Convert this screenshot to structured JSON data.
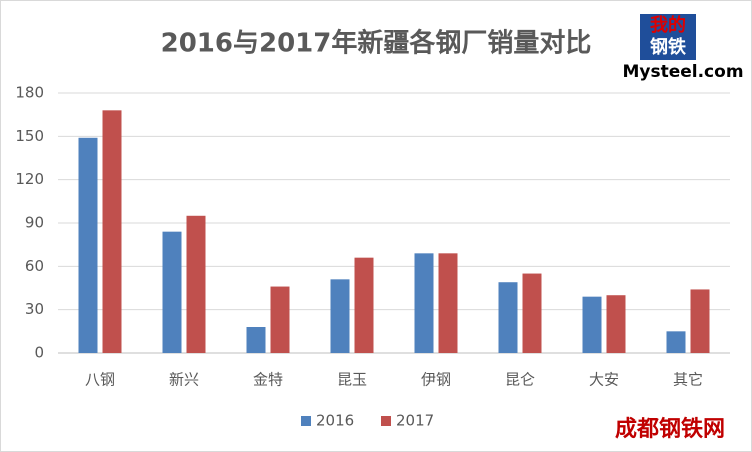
{
  "chart_data": {
    "type": "bar",
    "title": "2016与2017年新疆各钢厂销量对比",
    "categories": [
      "八钢",
      "新兴",
      "金特",
      "昆玉",
      "伊钢",
      "昆仑",
      "大安",
      "其它"
    ],
    "series": [
      {
        "name": "2016",
        "color": "#4f81bd",
        "values": [
          149,
          84,
          18,
          51,
          69,
          49,
          39,
          15
        ]
      },
      {
        "name": "2017",
        "color": "#c0504d",
        "values": [
          168,
          95,
          46,
          66,
          69,
          55,
          40,
          44
        ]
      }
    ],
    "ylim": [
      0,
      180
    ],
    "yticks": [
      0,
      30,
      60,
      90,
      120,
      150,
      180
    ],
    "grid": true,
    "legend": "bottom"
  },
  "logo": {
    "lines": [
      "我的",
      "钢铁"
    ],
    "site": "Mysteel.com"
  },
  "watermark": "成都钢铁网"
}
